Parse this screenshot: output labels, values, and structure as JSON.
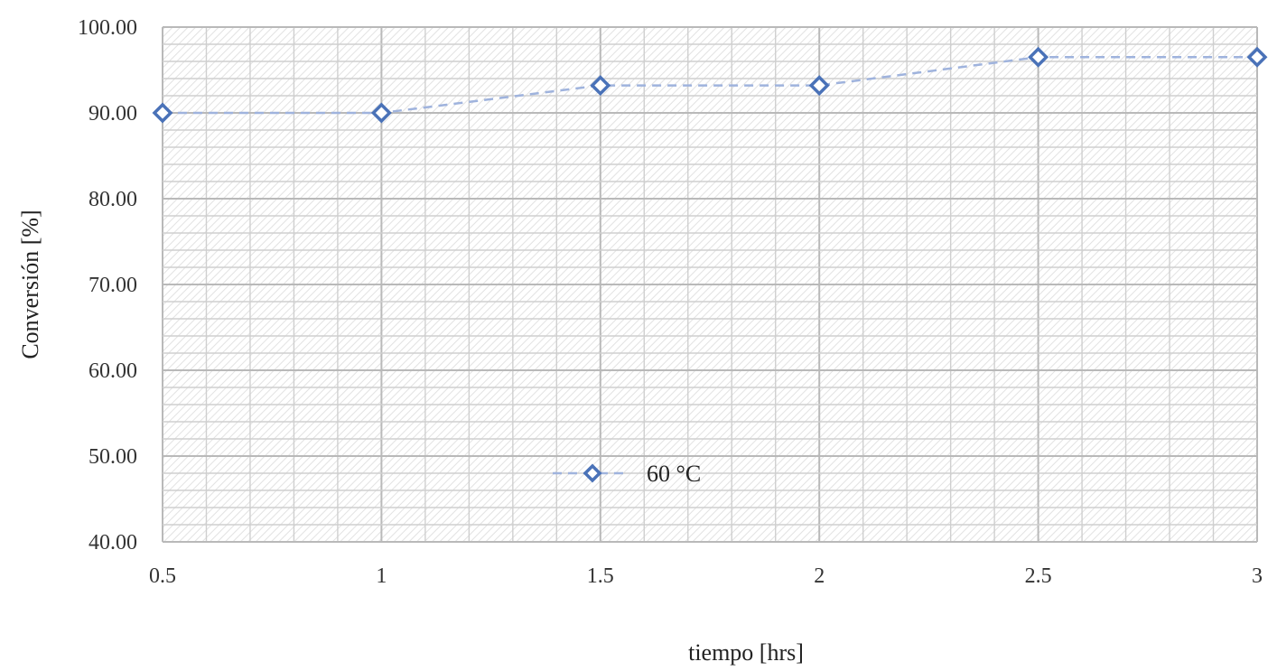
{
  "chart_data": {
    "type": "line",
    "title": "",
    "xlabel": "tiempo [hrs]",
    "ylabel": "Conversión [%]",
    "x": [
      0.5,
      1,
      1.5,
      2,
      2.5,
      3
    ],
    "x_tick_labels": [
      "0.5",
      "1",
      "1.5",
      "2",
      "2.5",
      "3"
    ],
    "y_tick_labels": [
      "40.00",
      "50.00",
      "60.00",
      "70.00",
      "80.00",
      "90.00",
      "100.00"
    ],
    "xlim": [
      0.5,
      3
    ],
    "ylim": [
      40,
      100
    ],
    "grid": true,
    "legend_position": "bottom-center",
    "series": [
      {
        "name": "60 °C",
        "values": [
          90.0,
          90.0,
          93.2,
          93.2,
          96.5,
          96.5
        ],
        "marker": "diamond-open",
        "line_style": "dashed",
        "color": "#4a72b8",
        "line_color": "#9fb3dd"
      }
    ]
  }
}
